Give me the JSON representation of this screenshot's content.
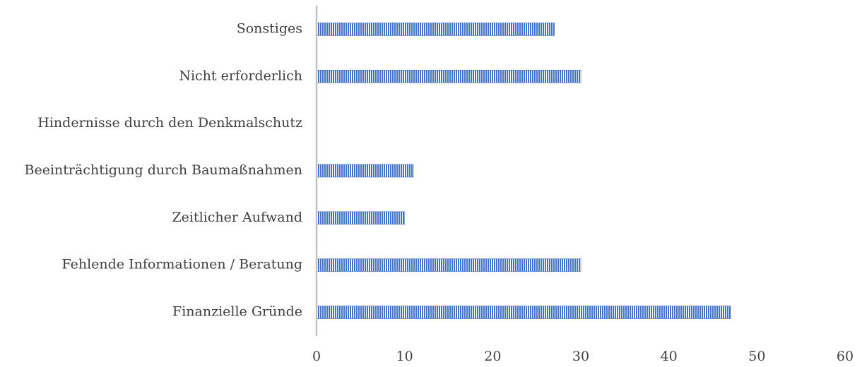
{
  "chart_data": {
    "type": "barh",
    "categories": [
      "Finanzielle Gründe",
      "Fehlende Informationen / Beratung",
      "Zeitlicher Aufwand",
      "Beeinträchtigung durch Baumaßnahmen",
      "Hindernisse durch den Denkmalschutz",
      "Nicht erforderlich",
      "Sonstiges"
    ],
    "values": [
      47,
      30,
      10,
      11,
      0,
      30,
      27
    ],
    "color": "#4472c4",
    "xlim": [
      0,
      60
    ],
    "xticks": [
      0,
      10,
      20,
      30,
      40,
      50,
      60
    ],
    "grid": false
  }
}
